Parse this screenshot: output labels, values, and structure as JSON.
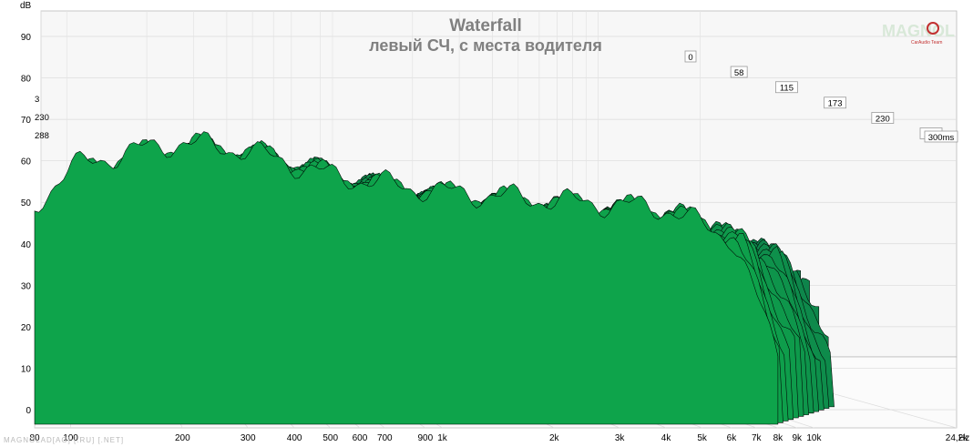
{
  "chart_data": {
    "type": "area",
    "title": "Waterfall",
    "subtitle": "левый СЧ, с места водителя",
    "ylabel": "dB",
    "xunit": "Hz",
    "zunit": "ms",
    "x_scale": "log",
    "xlim": [
      80,
      24200
    ],
    "ylim": [
      -5,
      95
    ],
    "zlim": [
      0,
      300
    ],
    "grid": true,
    "y_ticks": [
      "90",
      "80",
      "70",
      "60",
      "50",
      "40",
      "30",
      "20",
      "10",
      "0"
    ],
    "y_tick_values": [
      90,
      80,
      70,
      60,
      50,
      40,
      30,
      20,
      10,
      0
    ],
    "x_ticks": [
      "80",
      "100",
      "200",
      "300",
      "400",
      "500",
      "600",
      "700",
      "900",
      "1k",
      "2k",
      "3k",
      "4k",
      "5k",
      "6k",
      "7k",
      "8k",
      "9k",
      "10k",
      "24,2k"
    ],
    "x_tick_values": [
      80,
      100,
      200,
      300,
      400,
      500,
      600,
      700,
      900,
      1000,
      2000,
      3000,
      4000,
      5000,
      6000,
      7000,
      8000,
      9000,
      10000,
      24200
    ],
    "z_ticks": [
      "0",
      "58",
      "115",
      "173",
      "230",
      "288",
      "300ms"
    ],
    "z_tick_values": [
      0,
      58,
      115,
      173,
      230,
      288,
      300
    ],
    "left_depth_labels": [
      "3",
      "230",
      "288"
    ],
    "fill_color": "#0ea44b",
    "line_color": "#000000",
    "envelope": {
      "x": [
        80,
        90,
        100,
        150,
        200,
        300,
        500,
        1000,
        2000,
        4000,
        6000,
        8000
      ],
      "y_front": [
        52,
        58,
        62,
        66,
        68,
        66,
        60,
        56,
        54,
        52,
        45,
        18
      ]
    }
  },
  "watermark": "MAGNOLAD[AG] [.RU] [.NET]",
  "logo": {
    "text": "MAGNOL",
    "subtext": "CarAudio Team",
    "color": "#c23030"
  }
}
